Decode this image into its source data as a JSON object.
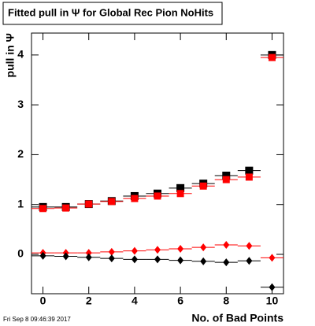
{
  "chart_data": {
    "type": "scatter",
    "title": "Fitted pull in Ψ  for Global Rec Pion NoHits",
    "x_label": "No. of Bad Points",
    "y_label": "pull in Ψ",
    "footer": "Fri Sep  8 09:46:39 2017",
    "x": [
      0,
      1,
      2,
      3,
      4,
      5,
      6,
      7,
      8,
      9,
      10
    ],
    "series": [
      {
        "color": "#000000",
        "marker": "square",
        "values": [
          0.95,
          0.95,
          1.01,
          1.07,
          1.17,
          1.22,
          1.33,
          1.42,
          1.58,
          1.68,
          4.0
        ]
      },
      {
        "color": "#ff0000",
        "marker": "square",
        "values": [
          0.92,
          0.93,
          1.01,
          1.06,
          1.12,
          1.17,
          1.22,
          1.37,
          1.5,
          1.55,
          3.95
        ]
      },
      {
        "color": "#ff0000",
        "marker": "diamond",
        "values": [
          0.03,
          0.03,
          0.03,
          0.05,
          0.07,
          0.09,
          0.11,
          0.14,
          0.19,
          0.17,
          -0.07
        ]
      },
      {
        "color": "#000000",
        "marker": "diamond",
        "values": [
          -0.03,
          -0.04,
          -0.06,
          -0.08,
          -0.1,
          -0.1,
          -0.12,
          -0.14,
          -0.16,
          -0.13,
          -0.66
        ]
      }
    ],
    "xlim": [
      -0.5,
      10.5
    ],
    "xticks": [
      0,
      2,
      4,
      6,
      8,
      10
    ],
    "ylim": [
      -0.79,
      4.44
    ],
    "yticks": [
      0,
      1,
      2,
      3,
      4
    ]
  }
}
